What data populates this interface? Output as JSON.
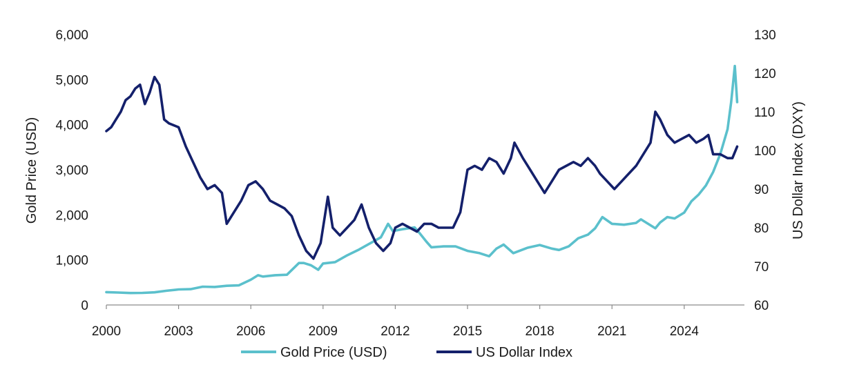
{
  "chart_data": {
    "type": "line",
    "title": "",
    "xlabel": "",
    "ylabel_left": "Gold Price (USD)",
    "ylabel_right": "US Dollar Index (DXY)",
    "xlim": [
      2000,
      2026.5
    ],
    "ylim_left": [
      0,
      6000
    ],
    "ylim_right": [
      60,
      130
    ],
    "x_ticks": [
      2000,
      2003,
      2006,
      2009,
      2012,
      2015,
      2018,
      2021,
      2024
    ],
    "x_tick_labels": [
      "2000",
      "2003",
      "2006",
      "2009",
      "2012",
      "2015",
      "2018",
      "2021",
      "2024"
    ],
    "y_left_ticks": [
      0,
      1000,
      2000,
      3000,
      4000,
      5000,
      6000
    ],
    "y_left_tick_labels": [
      "0",
      "1,000",
      "2,000",
      "3,000",
      "4,000",
      "5,000",
      "6,000"
    ],
    "y_right_ticks": [
      60,
      70,
      80,
      90,
      100,
      110,
      120,
      130
    ],
    "y_right_tick_labels": [
      "60",
      "70",
      "80",
      "90",
      "100",
      "110",
      "120",
      "130"
    ],
    "grid": false,
    "legend_position": "bottom",
    "series": [
      {
        "name": "Gold Price (USD)",
        "axis": "left",
        "color": "#5bc0cc",
        "x": [
          2000.0,
          2000.5,
          2001.0,
          2001.5,
          2002.0,
          2002.5,
          2003.0,
          2003.5,
          2004.0,
          2004.5,
          2005.0,
          2005.5,
          2006.0,
          2006.3,
          2006.5,
          2007.0,
          2007.5,
          2008.0,
          2008.2,
          2008.5,
          2008.8,
          2009.0,
          2009.5,
          2010.0,
          2010.5,
          2011.0,
          2011.4,
          2011.7,
          2011.9,
          2012.3,
          2012.8,
          2013.0,
          2013.3,
          2013.5,
          2014.0,
          2014.5,
          2015.0,
          2015.5,
          2015.9,
          2016.2,
          2016.5,
          2016.9,
          2017.5,
          2018.0,
          2018.5,
          2018.8,
          2019.2,
          2019.6,
          2020.0,
          2020.3,
          2020.6,
          2021.0,
          2021.5,
          2022.0,
          2022.2,
          2022.8,
          2023.0,
          2023.3,
          2023.6,
          2024.0,
          2024.3,
          2024.6,
          2024.9,
          2025.2,
          2025.5,
          2025.8,
          2025.95,
          2026.1,
          2026.2
        ],
        "values": [
          285,
          275,
          265,
          268,
          280,
          315,
          345,
          350,
          405,
          400,
          425,
          435,
          560,
          660,
          630,
          660,
          670,
          930,
          930,
          880,
          780,
          920,
          950,
          1100,
          1230,
          1380,
          1500,
          1800,
          1640,
          1680,
          1720,
          1600,
          1400,
          1280,
          1300,
          1300,
          1200,
          1150,
          1080,
          1250,
          1340,
          1150,
          1270,
          1330,
          1250,
          1220,
          1300,
          1480,
          1560,
          1700,
          1950,
          1800,
          1780,
          1820,
          1900,
          1700,
          1830,
          1950,
          1920,
          2050,
          2300,
          2450,
          2650,
          2950,
          3350,
          3900,
          4500,
          5300,
          4500
        ]
      },
      {
        "name": "US Dollar Index",
        "axis": "right",
        "color": "#14206b",
        "x": [
          2000.0,
          2000.2,
          2000.4,
          2000.6,
          2000.8,
          2001.0,
          2001.2,
          2001.4,
          2001.6,
          2001.8,
          2002.0,
          2002.2,
          2002.4,
          2002.6,
          2003.0,
          2003.3,
          2003.6,
          2003.9,
          2004.2,
          2004.5,
          2004.8,
          2005.0,
          2005.3,
          2005.6,
          2005.9,
          2006.2,
          2006.5,
          2006.8,
          2007.1,
          2007.4,
          2007.7,
          2008.0,
          2008.3,
          2008.6,
          2008.9,
          2009.2,
          2009.4,
          2009.7,
          2010.0,
          2010.3,
          2010.6,
          2010.9,
          2011.2,
          2011.5,
          2011.8,
          2012.0,
          2012.3,
          2012.6,
          2012.9,
          2013.2,
          2013.5,
          2013.8,
          2014.1,
          2014.4,
          2014.7,
          2015.0,
          2015.3,
          2015.6,
          2015.9,
          2016.2,
          2016.5,
          2016.8,
          2016.95,
          2017.3,
          2017.6,
          2017.9,
          2018.2,
          2018.5,
          2018.8,
          2019.1,
          2019.4,
          2019.7,
          2020.0,
          2020.3,
          2020.5,
          2020.8,
          2021.1,
          2021.4,
          2021.7,
          2022.0,
          2022.3,
          2022.6,
          2022.8,
          2023.0,
          2023.3,
          2023.6,
          2023.9,
          2024.2,
          2024.5,
          2024.8,
          2025.0,
          2025.2,
          2025.5,
          2025.8,
          2026.0,
          2026.2
        ],
        "values": [
          105,
          106,
          108,
          110,
          113,
          114,
          116,
          117,
          112,
          115,
          119,
          117,
          108,
          107,
          106,
          101,
          97,
          93,
          90,
          91,
          89,
          81,
          84,
          87,
          91,
          92,
          90,
          87,
          86,
          85,
          83,
          78,
          74,
          72,
          76,
          88,
          80,
          78,
          80,
          82,
          86,
          80,
          76,
          74,
          76,
          80,
          81,
          80,
          79,
          81,
          81,
          80,
          80,
          80,
          84,
          95,
          96,
          95,
          98,
          97,
          94,
          98,
          102,
          98,
          95,
          92,
          89,
          92,
          95,
          96,
          97,
          96,
          98,
          96,
          94,
          92,
          90,
          92,
          94,
          96,
          99,
          102,
          110,
          108,
          104,
          102,
          103,
          104,
          102,
          103,
          104,
          99,
          99,
          98,
          98,
          101
        ]
      }
    ]
  }
}
